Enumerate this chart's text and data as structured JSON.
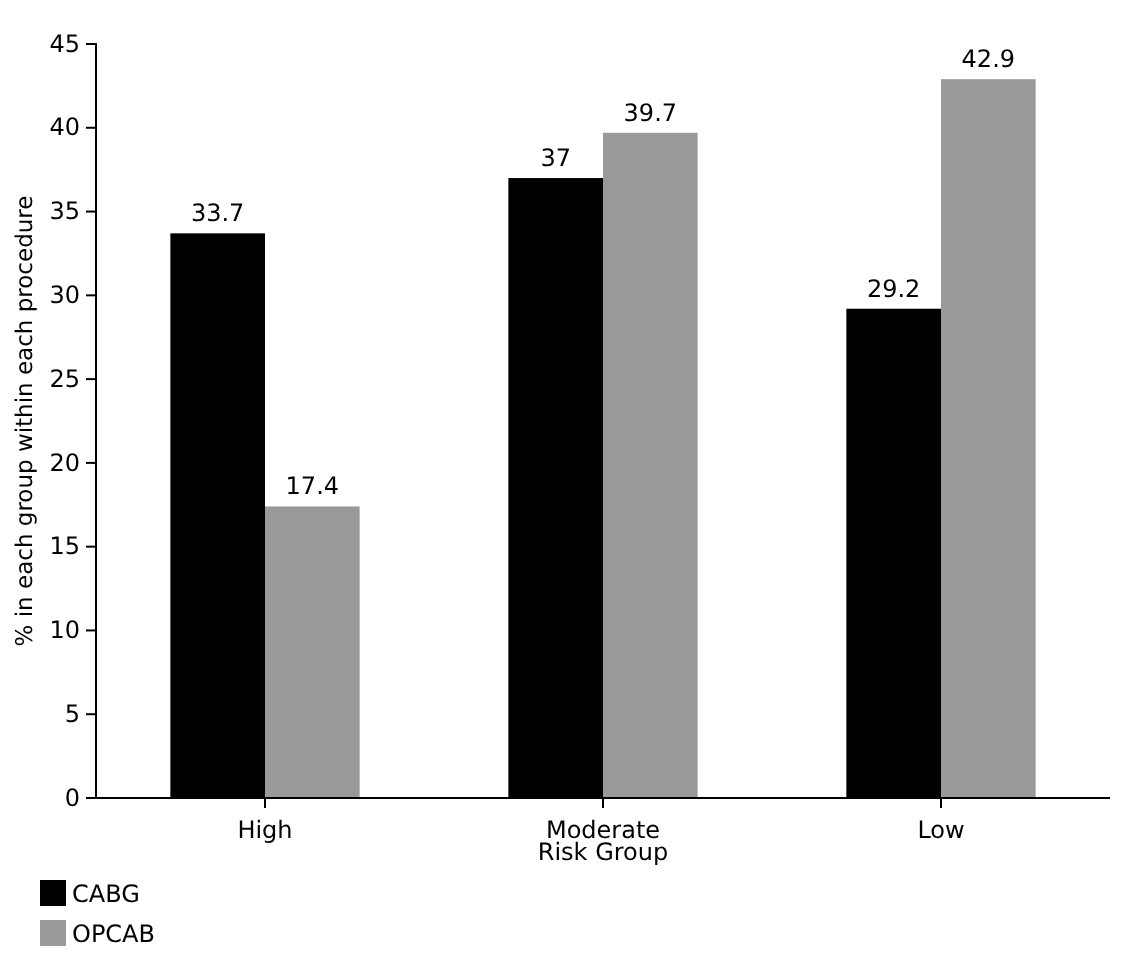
{
  "chart_data": {
    "type": "bar",
    "categories": [
      "High",
      "Moderate",
      "Low"
    ],
    "xlabel": "Risk Group",
    "ylabel": "% in each group within each procedure",
    "series": [
      {
        "name": "CABG",
        "color": "#000000",
        "values": [
          33.7,
          37,
          29.2
        ]
      },
      {
        "name": "OPCAB",
        "color": "#999999",
        "values": [
          17.4,
          39.7,
          42.9
        ]
      }
    ],
    "ylim": [
      0,
      45
    ],
    "yticks": [
      0,
      5,
      10,
      15,
      20,
      25,
      30,
      35,
      40,
      45
    ],
    "data_labels": true,
    "legend": "bottom left",
    "grid": false
  }
}
